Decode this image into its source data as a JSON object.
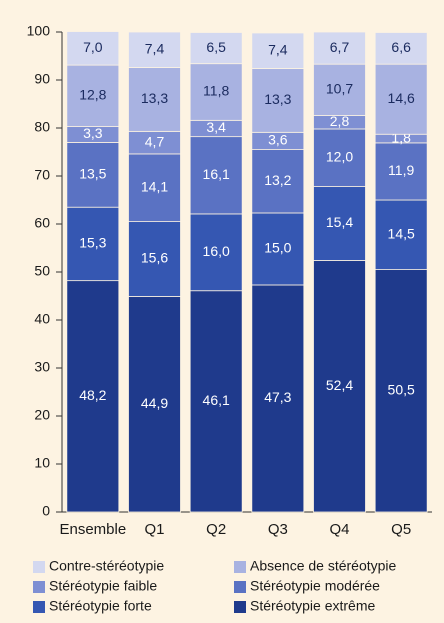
{
  "chart_data": {
    "type": "stacked_bar",
    "categories": [
      "Ensemble",
      "Q1",
      "Q2",
      "Q3",
      "Q4",
      "Q5"
    ],
    "series": [
      {
        "name": "Contre-stéréotypie",
        "color": "#d3d8f0",
        "text_color": "#1a2a5e",
        "values": [
          7.0,
          7.4,
          6.5,
          7.4,
          6.7,
          6.6
        ],
        "value_labels": [
          "7,0",
          "7,4",
          "6,5",
          "7,4",
          "6,7",
          "6,6"
        ]
      },
      {
        "name": "Absence de stéréotypie",
        "color": "#a8b2e1",
        "text_color": "#1a2a5e",
        "values": [
          12.8,
          13.3,
          11.8,
          13.3,
          10.7,
          14.6
        ],
        "value_labels": [
          "12,8",
          "13,3",
          "11,8",
          "13,3",
          "10,7",
          "14,6"
        ]
      },
      {
        "name": "Stéréotypie faible",
        "color": "#7e8fd3",
        "text_color": "#ffffff",
        "values": [
          3.3,
          4.7,
          3.4,
          3.6,
          2.8,
          1.8
        ],
        "value_labels": [
          "3,3",
          "4,7",
          "3,4",
          "3,6",
          "2,8",
          "1,8"
        ]
      },
      {
        "name": "Stéréotypie modérée",
        "color": "#5a72c3",
        "text_color": "#ffffff",
        "values": [
          13.5,
          14.1,
          16.1,
          13.2,
          12.0,
          11.9
        ],
        "value_labels": [
          "13,5",
          "14,1",
          "16,1",
          "13,2",
          "12,0",
          "11,9"
        ]
      },
      {
        "name": "Stéréotypie forte",
        "color": "#3557b2",
        "text_color": "#ffffff",
        "values": [
          15.3,
          15.6,
          16.0,
          15.0,
          15.4,
          14.5
        ],
        "value_labels": [
          "15,3",
          "15,6",
          "16,0",
          "15,0",
          "15,4",
          "14,5"
        ]
      },
      {
        "name": "Stéréotypie extrême",
        "color": "#1f3a8c",
        "text_color": "#ffffff",
        "values": [
          48.2,
          44.9,
          46.1,
          47.3,
          52.4,
          50.5
        ],
        "value_labels": [
          "48,2",
          "44,9",
          "46,1",
          "47,3",
          "52,4",
          "50,5"
        ]
      }
    ],
    "ylim": [
      0,
      100
    ],
    "yticks": [
      0,
      10,
      20,
      30,
      40,
      50,
      60,
      70,
      80,
      90,
      100
    ]
  }
}
